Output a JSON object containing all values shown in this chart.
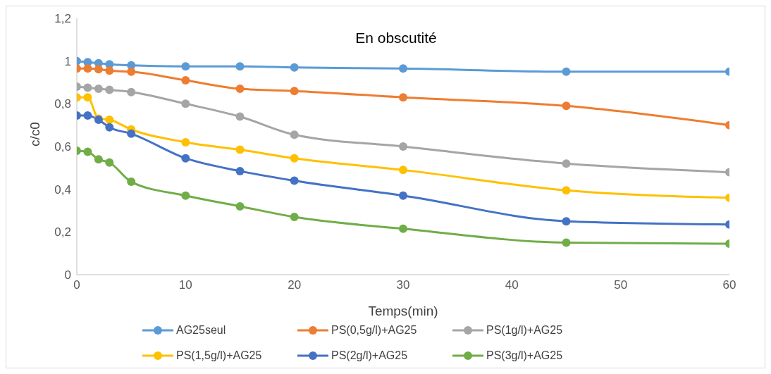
{
  "chart_data": {
    "type": "line",
    "title": "En obscutité",
    "xlabel": "Temps(min)",
    "ylabel": "c/c0",
    "x": [
      0,
      1,
      2,
      3,
      5,
      10,
      15,
      20,
      30,
      45,
      60
    ],
    "series": [
      {
        "name": "AG25seul",
        "color": "#5b9bd5",
        "values": [
          1.0,
          0.995,
          0.99,
          0.985,
          0.98,
          0.975,
          0.975,
          0.97,
          0.965,
          0.95,
          0.95
        ]
      },
      {
        "name": "PS(0,5g/l)+AG25",
        "color": "#ed7d31",
        "values": [
          0.965,
          0.965,
          0.962,
          0.955,
          0.95,
          0.91,
          0.87,
          0.86,
          0.83,
          0.79,
          0.7
        ]
      },
      {
        "name": "PS(1g/l)+AG25",
        "color": "#a5a5a5",
        "values": [
          0.88,
          0.875,
          0.87,
          0.865,
          0.855,
          0.8,
          0.74,
          0.655,
          0.6,
          0.52,
          0.48
        ]
      },
      {
        "name": "PS(1,5g/l)+AG25",
        "color": "#ffc000",
        "values": [
          0.83,
          0.83,
          0.73,
          0.725,
          0.68,
          0.62,
          0.585,
          0.545,
          0.49,
          0.395,
          0.36
        ]
      },
      {
        "name": "PS(2g/l)+AG25",
        "color": "#4472c4",
        "values": [
          0.745,
          0.745,
          0.725,
          0.69,
          0.66,
          0.545,
          0.485,
          0.44,
          0.37,
          0.25,
          0.235
        ]
      },
      {
        "name": "PS(3g/l)+AG25",
        "color": "#70ad47",
        "values": [
          0.58,
          0.575,
          0.54,
          0.525,
          0.435,
          0.37,
          0.32,
          0.27,
          0.215,
          0.15,
          0.145
        ]
      }
    ],
    "xlim": [
      0,
      60
    ],
    "xticks": [
      0,
      10,
      20,
      30,
      40,
      50,
      60
    ],
    "ylim": [
      0,
      1.2
    ],
    "yticks": [
      0,
      {
        "value": 0.2,
        "label": "0,2"
      },
      {
        "value": 0.4,
        "label": "0,4"
      },
      {
        "value": 0.6,
        "label": "0,6"
      },
      {
        "value": 0.8,
        "label": "0,8"
      },
      1,
      {
        "value": 1.2,
        "label": "1,2"
      }
    ],
    "grid": false,
    "legend": "bottom",
    "marker": "circle",
    "line_style": "solid"
  }
}
